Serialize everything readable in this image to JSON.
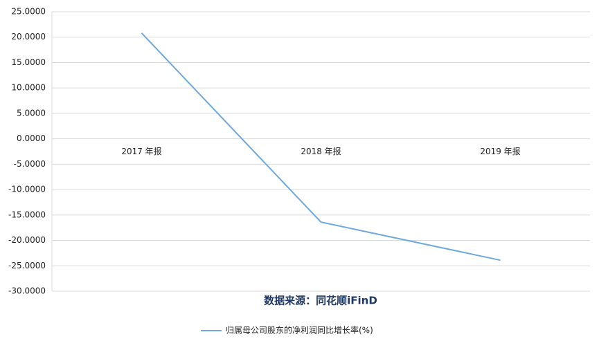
{
  "chart_data": {
    "type": "line",
    "annotation": "数据来源：同花顺iFinD",
    "categories": [
      "2017 年报",
      "2018 年报",
      "2019 年报"
    ],
    "series": [
      {
        "name": "归属母公司股东的净利润同比增长率(%)",
        "color": "#6fa8dc",
        "values": [
          20.8,
          -16.4,
          -23.9
        ]
      }
    ],
    "ylim": [
      -30,
      25
    ],
    "yticks": [
      {
        "value": -30,
        "label": "-30.0000"
      },
      {
        "value": -25,
        "label": "-25.0000"
      },
      {
        "value": -20,
        "label": "-20.0000"
      },
      {
        "value": -15,
        "label": "-15.0000"
      },
      {
        "value": -10,
        "label": "-10.0000"
      },
      {
        "value": -5,
        "label": "-5.0000"
      },
      {
        "value": 0,
        "label": "0.0000"
      },
      {
        "value": 5,
        "label": "5.0000"
      },
      {
        "value": 10,
        "label": "10.0000"
      },
      {
        "value": 15,
        "label": "15.0000"
      },
      {
        "value": 20,
        "label": "20.0000"
      },
      {
        "value": 25,
        "label": "25.0000"
      }
    ],
    "grid": true,
    "legend": "bottom"
  }
}
